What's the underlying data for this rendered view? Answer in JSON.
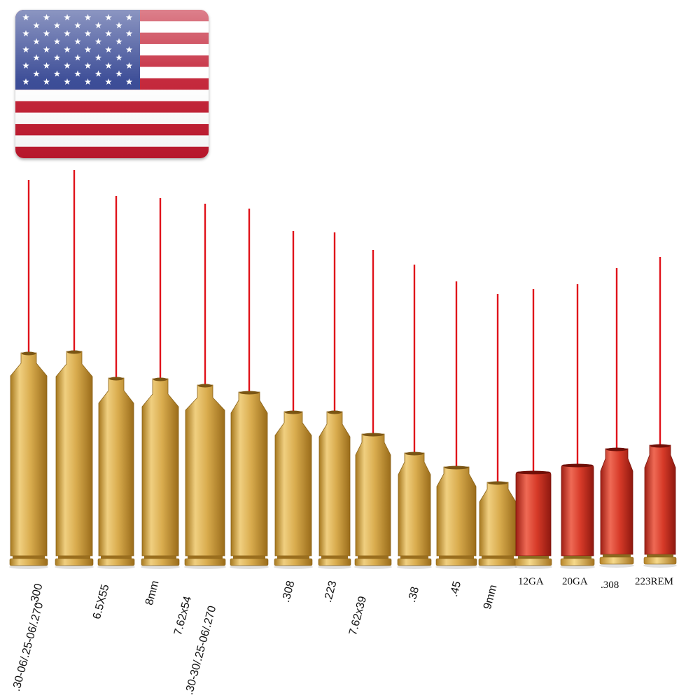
{
  "flag": {
    "icon": "us-flag-icon",
    "stripe_red": "#c0182d",
    "stripe_white": "#ffffff",
    "canton_blue": "#2d3f8f"
  },
  "laser_color": "#e0121a",
  "brass_color": "#d6a94c",
  "red_body_color": "#d93a2b",
  "cartridges": [
    {
      "label": ".300",
      "material": "brass"
    },
    {
      "label": ".30-06/.25-06/.270",
      "material": "brass"
    },
    {
      "label": "6.5X55",
      "material": "brass"
    },
    {
      "label": "8mm",
      "material": "brass"
    },
    {
      "label": "7.62x54",
      "material": "brass"
    },
    {
      "label": ".30-30/.25-06/.270",
      "material": "brass"
    },
    {
      "label": ".308",
      "material": "brass"
    },
    {
      "label": ".223",
      "material": "brass"
    },
    {
      "label": "7.62x39",
      "material": "brass"
    },
    {
      "label": ".38",
      "material": "brass"
    },
    {
      "label": ".45",
      "material": "brass"
    },
    {
      "label": "9mm",
      "material": "brass"
    },
    {
      "label": "12GA",
      "material": "red"
    },
    {
      "label": "20GA",
      "material": "red"
    },
    {
      "label": ".308",
      "material": "red"
    },
    {
      "label": "223REM",
      "material": "red"
    }
  ]
}
